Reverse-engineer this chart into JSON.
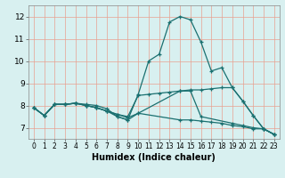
{
  "xlabel": "Humidex (Indice chaleur)",
  "xlim": [
    -0.5,
    23.5
  ],
  "ylim": [
    6.5,
    12.5
  ],
  "xticks": [
    0,
    1,
    2,
    3,
    4,
    5,
    6,
    7,
    8,
    9,
    10,
    11,
    12,
    13,
    14,
    15,
    16,
    17,
    18,
    19,
    20,
    21,
    22,
    23
  ],
  "yticks": [
    7,
    8,
    9,
    10,
    11,
    12
  ],
  "bg_color": "#d8f0f0",
  "grid_color": "#e8a090",
  "line_color": "#1a7070",
  "lines": [
    {
      "x": [
        0,
        1,
        2,
        3,
        4,
        5,
        6,
        7,
        8,
        9,
        10,
        11,
        12,
        13,
        14,
        15,
        16,
        17,
        18,
        19,
        20,
        21,
        22,
        23
      ],
      "y": [
        7.9,
        7.55,
        8.05,
        8.05,
        8.1,
        8.05,
        8.0,
        7.85,
        7.5,
        7.35,
        8.5,
        10.0,
        10.3,
        11.75,
        12.0,
        11.85,
        10.85,
        9.55,
        9.7,
        8.8,
        8.2,
        7.55,
        6.95,
        6.7
      ]
    },
    {
      "x": [
        0,
        1,
        2,
        3,
        4,
        5,
        6,
        7,
        8,
        9,
        10,
        11,
        12,
        13,
        14,
        15,
        16,
        17,
        18,
        19,
        20,
        21,
        22,
        23
      ],
      "y": [
        7.9,
        7.55,
        8.05,
        8.05,
        8.1,
        8.0,
        7.9,
        7.75,
        7.6,
        7.5,
        8.45,
        8.5,
        8.55,
        8.6,
        8.65,
        8.7,
        8.7,
        8.75,
        8.8,
        8.8,
        8.2,
        7.55,
        6.95,
        6.7
      ]
    },
    {
      "x": [
        0,
        1,
        2,
        3,
        4,
        5,
        6,
        7,
        8,
        9,
        10,
        14,
        15,
        16,
        19,
        20,
        21,
        22,
        23
      ],
      "y": [
        7.9,
        7.55,
        8.05,
        8.05,
        8.1,
        8.0,
        7.9,
        7.75,
        7.6,
        7.45,
        7.65,
        8.65,
        8.65,
        7.5,
        7.2,
        7.1,
        7.0,
        6.95,
        6.7
      ]
    },
    {
      "x": [
        0,
        1,
        2,
        3,
        4,
        5,
        6,
        7,
        8,
        9,
        10,
        14,
        15,
        16,
        17,
        18,
        19,
        20,
        21,
        22,
        23
      ],
      "y": [
        7.9,
        7.55,
        8.05,
        8.05,
        8.1,
        8.0,
        7.9,
        7.75,
        7.5,
        7.35,
        7.65,
        7.35,
        7.35,
        7.3,
        7.25,
        7.2,
        7.1,
        7.05,
        6.95,
        6.95,
        6.7
      ]
    }
  ]
}
